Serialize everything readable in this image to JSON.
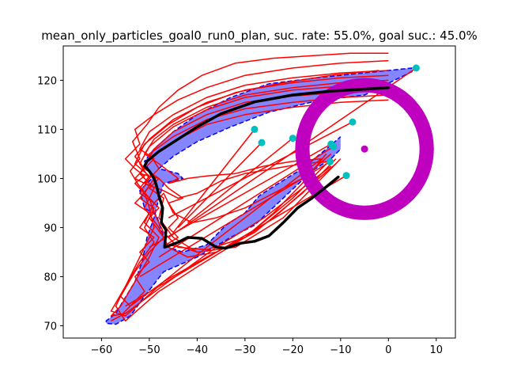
{
  "chart_data": {
    "type": "line",
    "title": "mean_only_particles_goal0_run0_plan, suc. rate: 55.0%, goal suc.: 45.0%",
    "xlabel": "",
    "ylabel": "",
    "xlim": [
      -68,
      14
    ],
    "ylim": [
      67.5,
      127
    ],
    "x_ticks": [
      -60,
      -50,
      -40,
      -30,
      -20,
      -10,
      0,
      10
    ],
    "y_ticks": [
      70,
      80,
      90,
      100,
      110,
      120
    ],
    "grid": false,
    "legend": "none",
    "colors": {
      "particles": "#ff0000",
      "band_fill": "#7070ff",
      "band_edge": "#0000ff",
      "mean_path": "#000000",
      "goal_ring": "#bf00bf",
      "goal_points": "#00bfbf"
    },
    "goal_ring": {
      "center": [
        -5,
        106
      ],
      "r_outer": 14.5,
      "r_inner": 11.5
    },
    "goal_center": [
      -5,
      106
    ],
    "goal_points": [
      [
        5.8,
        122.5
      ],
      [
        -7.5,
        111.5
      ],
      [
        -28,
        110
      ],
      [
        -26.5,
        107.3
      ],
      [
        -20,
        108.2
      ],
      [
        -12,
        107
      ],
      [
        -11.5,
        106.5
      ],
      [
        -12.2,
        103.4
      ],
      [
        -8.8,
        100.6
      ]
    ],
    "band": {
      "upper": [
        [
          5,
          122.5
        ],
        [
          -5,
          121.5
        ],
        [
          -15,
          120.5
        ],
        [
          -25,
          119.3
        ],
        [
          -33,
          116.5
        ],
        [
          -40,
          113
        ],
        [
          -45,
          109.5
        ],
        [
          -49,
          106
        ],
        [
          -51,
          103.5
        ],
        [
          -50,
          101.5
        ],
        [
          -49.5,
          100
        ],
        [
          -52,
          97.5
        ],
        [
          -51,
          94
        ],
        [
          -48.5,
          92.5
        ],
        [
          -47.5,
          89.5
        ],
        [
          -46,
          86
        ],
        [
          -43,
          85
        ],
        [
          -38,
          86.5
        ],
        [
          -34,
          90.5
        ],
        [
          -30,
          93
        ],
        [
          -27,
          96.5
        ],
        [
          -23,
          99
        ],
        [
          -18,
          102
        ],
        [
          -13,
          106
        ],
        [
          -10,
          108.5
        ]
      ],
      "lower": [
        [
          5,
          121.8
        ],
        [
          -5,
          117
        ],
        [
          -15,
          115.8
        ],
        [
          -25,
          113.5
        ],
        [
          -33,
          110.5
        ],
        [
          -40,
          107.5
        ],
        [
          -45,
          104.5
        ],
        [
          -48,
          102
        ],
        [
          -44,
          101
        ],
        [
          -43,
          100
        ],
        [
          -47,
          99
        ],
        [
          -48,
          96
        ],
        [
          -49,
          92
        ],
        [
          -50.5,
          88
        ],
        [
          -51.5,
          83
        ],
        [
          -53,
          79
        ],
        [
          -55.5,
          75
        ],
        [
          -57,
          72.5
        ],
        [
          -59,
          71
        ],
        [
          -59,
          70.5
        ],
        [
          -57,
          70.3
        ],
        [
          -54,
          72
        ],
        [
          -51,
          76
        ],
        [
          -47,
          81
        ],
        [
          -40,
          84
        ],
        [
          -33,
          88
        ],
        [
          -28,
          90.5
        ],
        [
          -22,
          96
        ],
        [
          -16,
          101.5
        ],
        [
          -12,
          104
        ],
        [
          -10,
          106
        ]
      ]
    },
    "mean_path": [
      [
        0,
        118.5
      ],
      [
        -5,
        118.2
      ],
      [
        -12,
        117.8
      ],
      [
        -20,
        117
      ],
      [
        -28,
        115.6
      ],
      [
        -35,
        113.2
      ],
      [
        -40,
        110.5
      ],
      [
        -44,
        108
      ],
      [
        -48,
        105.5
      ],
      [
        -50.5,
        103.5
      ],
      [
        -51,
        102.5
      ],
      [
        -50,
        101.5
      ],
      [
        -49,
        100
      ],
      [
        -48.5,
        98.5
      ],
      [
        -48,
        96.5
      ],
      [
        -47.2,
        94
      ],
      [
        -47.5,
        91
      ],
      [
        -46.5,
        89.5
      ],
      [
        -46.8,
        86
      ],
      [
        -44,
        87
      ],
      [
        -42,
        88
      ],
      [
        -39,
        87.8
      ],
      [
        -36,
        86
      ],
      [
        -34,
        85.8
      ],
      [
        -31,
        86.8
      ],
      [
        -28,
        87.2
      ],
      [
        -25,
        88.3
      ],
      [
        -22,
        91
      ],
      [
        -19,
        94
      ],
      [
        -16,
        96
      ],
      [
        -13,
        98.3
      ],
      [
        -10.5,
        100.3
      ]
    ],
    "particle_trajectories": [
      [
        [
          0,
          125.5
        ],
        [
          -8,
          125.5
        ],
        [
          -16,
          125
        ],
        [
          -24,
          124.5
        ],
        [
          -32,
          123.5
        ],
        [
          -39,
          121
        ],
        [
          -44,
          118
        ],
        [
          -48,
          114.5
        ],
        [
          -50.5,
          111
        ],
        [
          -53.5,
          107.5
        ],
        [
          -52,
          104
        ],
        [
          -54,
          101.5
        ],
        [
          -52.5,
          99
        ],
        [
          -50,
          96
        ],
        [
          -49,
          93
        ],
        [
          -47,
          89
        ],
        [
          -44,
          86
        ],
        [
          -38,
          85.5
        ],
        [
          -30,
          88
        ],
        [
          -24,
          93
        ],
        [
          -18,
          99
        ],
        [
          -13,
          105
        ]
      ],
      [
        [
          0,
          124
        ],
        [
          -10,
          123.5
        ],
        [
          -20,
          122.5
        ],
        [
          -30,
          121
        ],
        [
          -38,
          118.5
        ],
        [
          -44,
          116
        ],
        [
          -49,
          113
        ],
        [
          -53,
          110
        ],
        [
          -52,
          107
        ],
        [
          -55,
          104
        ],
        [
          -53,
          102
        ],
        [
          -51,
          100.5
        ],
        [
          -53,
          99
        ],
        [
          -51,
          97
        ],
        [
          -50,
          94
        ],
        [
          -49,
          90
        ],
        [
          -51,
          86
        ],
        [
          -54,
          80
        ],
        [
          -57,
          74
        ],
        [
          -55,
          71
        ],
        [
          -48,
          77
        ],
        [
          -40,
          82
        ],
        [
          -30,
          88
        ],
        [
          -20,
          96
        ],
        [
          -13,
          103
        ]
      ],
      [
        [
          0,
          122
        ],
        [
          -10,
          121.5
        ],
        [
          -20,
          120.5
        ],
        [
          -30,
          119
        ],
        [
          -38,
          116.5
        ],
        [
          -45,
          113
        ],
        [
          -50,
          109.5
        ],
        [
          -52,
          106
        ],
        [
          -49,
          104
        ],
        [
          -51,
          102
        ],
        [
          -48,
          100
        ],
        [
          -50,
          98
        ],
        [
          -47,
          96
        ],
        [
          -48,
          92
        ],
        [
          -45,
          88
        ],
        [
          -40,
          85
        ],
        [
          -32,
          86
        ],
        [
          -22,
          92
        ],
        [
          -14,
          100
        ],
        [
          -10,
          104
        ]
      ],
      [
        [
          0,
          121
        ],
        [
          -10,
          120.5
        ],
        [
          -20,
          119.5
        ],
        [
          -30,
          118
        ],
        [
          -38,
          115.5
        ],
        [
          -45,
          112
        ],
        [
          -50,
          108
        ],
        [
          -53,
          104.5
        ],
        [
          -51,
          102
        ],
        [
          -53,
          100
        ],
        [
          -50,
          98.5
        ],
        [
          -52,
          96
        ],
        [
          -49,
          94
        ],
        [
          -51,
          90
        ],
        [
          -49,
          87
        ],
        [
          -52,
          83
        ],
        [
          -55,
          78
        ],
        [
          -58,
          73
        ],
        [
          -55,
          72
        ],
        [
          -47,
          79
        ],
        [
          -38,
          84
        ],
        [
          -28,
          89
        ],
        [
          -18,
          97
        ],
        [
          -11,
          104
        ]
      ],
      [
        [
          0,
          120
        ],
        [
          -10,
          119.5
        ],
        [
          -20,
          118.5
        ],
        [
          -30,
          117
        ],
        [
          -38,
          114.5
        ],
        [
          -45,
          111
        ],
        [
          -49,
          108
        ],
        [
          -51,
          105
        ],
        [
          -48,
          103
        ],
        [
          -44,
          100
        ],
        [
          -46,
          99
        ],
        [
          -42,
          100
        ],
        [
          -38,
          100.5
        ],
        [
          -32,
          101
        ],
        [
          -26,
          102.5
        ],
        [
          -20,
          103.5
        ],
        [
          -14,
          104
        ]
      ],
      [
        [
          0,
          119
        ],
        [
          -10,
          118.8
        ],
        [
          -20,
          118
        ],
        [
          -30,
          116.5
        ],
        [
          -38,
          114
        ],
        [
          -45,
          110.5
        ],
        [
          -50,
          106.5
        ],
        [
          -52,
          103
        ],
        [
          -50,
          100
        ],
        [
          -52,
          97
        ],
        [
          -49,
          95
        ],
        [
          -47,
          97
        ],
        [
          -45,
          93
        ],
        [
          -41,
          91
        ],
        [
          -36,
          92
        ],
        [
          -30,
          94
        ],
        [
          -24,
          97
        ],
        [
          -18,
          100
        ],
        [
          -12,
          105
        ]
      ],
      [
        [
          0,
          118
        ],
        [
          -10,
          117.5
        ],
        [
          -20,
          116.8
        ],
        [
          -30,
          115.5
        ],
        [
          -38,
          113
        ],
        [
          -45,
          109.5
        ],
        [
          -49,
          106
        ],
        [
          -51,
          102.5
        ],
        [
          -49,
          100
        ],
        [
          -51,
          97
        ],
        [
          -48,
          94
        ],
        [
          -50,
          92
        ],
        [
          -47,
          88
        ],
        [
          -50,
          85
        ],
        [
          -53,
          81
        ],
        [
          -56,
          76
        ],
        [
          -54,
          74
        ],
        [
          -47,
          79
        ],
        [
          -38,
          86
        ],
        [
          -30,
          92
        ],
        [
          -22,
          98
        ],
        [
          -14,
          104
        ]
      ],
      [
        [
          0,
          117
        ],
        [
          -10,
          116.5
        ],
        [
          -20,
          115.5
        ],
        [
          -30,
          114.2
        ],
        [
          -38,
          112
        ],
        [
          -45,
          108.5
        ],
        [
          -50,
          105
        ],
        [
          -48,
          102
        ],
        [
          -51,
          99
        ],
        [
          -47,
          97.5
        ],
        [
          -44,
          96
        ],
        [
          -40,
          97
        ],
        [
          -35,
          99.5
        ],
        [
          -30,
          101
        ],
        [
          -24,
          102
        ],
        [
          -18,
          103
        ],
        [
          -12,
          103.5
        ]
      ],
      [
        [
          0,
          116
        ],
        [
          -10,
          115.5
        ],
        [
          -20,
          114.5
        ],
        [
          -30,
          113
        ],
        [
          -38,
          111
        ],
        [
          -45,
          107.5
        ],
        [
          -50,
          104
        ],
        [
          -52,
          101
        ],
        [
          -49,
          98
        ],
        [
          -51,
          94
        ],
        [
          -48,
          90
        ],
        [
          -46,
          86
        ],
        [
          -42,
          84
        ],
        [
          -36,
          85
        ],
        [
          -30,
          88
        ],
        [
          -24,
          92
        ],
        [
          -17,
          98
        ],
        [
          -11,
          103
        ]
      ],
      [
        [
          -2,
          122
        ],
        [
          -12,
          121
        ],
        [
          -22,
          119.5
        ],
        [
          -32,
          117.5
        ],
        [
          -40,
          114.5
        ],
        [
          -46,
          111
        ],
        [
          -51,
          107
        ],
        [
          -53,
          103
        ],
        [
          -50,
          100.5
        ],
        [
          -52,
          98
        ],
        [
          -49,
          95
        ],
        [
          -51,
          91
        ],
        [
          -48,
          88
        ],
        [
          -50,
          84
        ],
        [
          -53,
          79
        ],
        [
          -56,
          74
        ],
        [
          -58,
          72
        ],
        [
          -55,
          72.5
        ],
        [
          -46,
          79
        ],
        [
          -36,
          86
        ],
        [
          -26,
          92
        ],
        [
          -18,
          98
        ],
        [
          -12,
          102.5
        ]
      ],
      [
        [
          -52,
          101
        ],
        [
          -48,
          100
        ],
        [
          -46,
          98
        ],
        [
          -43,
          96
        ],
        [
          -46,
          95
        ],
        [
          -44,
          92
        ],
        [
          -46,
          90
        ],
        [
          -44,
          88
        ],
        [
          -46.5,
          86.5
        ],
        [
          -43,
          86
        ],
        [
          -40,
          85
        ]
      ],
      [
        [
          -53,
          99
        ],
        [
          -51,
          97
        ],
        [
          -53,
          95
        ],
        [
          -50,
          93
        ],
        [
          -52,
          90
        ],
        [
          -49,
          88
        ],
        [
          -52,
          85
        ],
        [
          -50,
          83
        ],
        [
          -53,
          80
        ],
        [
          -51,
          77
        ],
        [
          -54,
          74
        ],
        [
          -56,
          72
        ],
        [
          -58,
          71
        ]
      ]
    ],
    "particle_spokes": [
      [
        [
          5.8,
          122.5
        ],
        [
          -46,
          88
        ]
      ],
      [
        [
          -28,
          110
        ],
        [
          -45,
          89
        ]
      ],
      [
        [
          -26.5,
          107.3
        ],
        [
          -44,
          90
        ]
      ],
      [
        [
          -20,
          108.2
        ],
        [
          -42,
          91
        ]
      ],
      [
        [
          -12,
          107
        ],
        [
          -50,
          86
        ]
      ],
      [
        [
          -11.5,
          106.5
        ],
        [
          -48,
          84
        ]
      ],
      [
        [
          -12.2,
          103.4
        ],
        [
          -52,
          80
        ]
      ],
      [
        [
          -8.8,
          100.6
        ],
        [
          -55,
          74
        ]
      ],
      [
        [
          -7.5,
          111.5
        ],
        [
          -46,
          92
        ]
      ]
    ]
  }
}
